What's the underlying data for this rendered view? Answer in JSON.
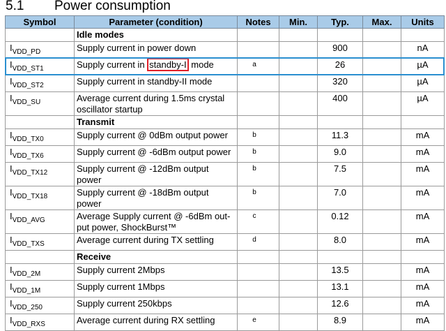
{
  "section": {
    "number": "5.1",
    "title": "Power consumption"
  },
  "table": {
    "headers": [
      "Symbol",
      "Parameter (condition)",
      "Notes",
      "Min.",
      "Typ.",
      "Max.",
      "Units"
    ],
    "rows": [
      {
        "section": "Idle modes"
      },
      {
        "symbol": "I",
        "sub": "VDD_PD",
        "parameter": "Supply current in power down",
        "typ": "900",
        "units": "nA"
      },
      {
        "symbol": "I",
        "sub": "VDD_ST1",
        "parameter": [
          "Supply current in ",
          "standby-I",
          " mode"
        ],
        "notes": "a",
        "typ": "26",
        "units": "µA",
        "selected": true
      },
      {
        "symbol": "I",
        "sub": "VDD_ST2",
        "parameter": "Supply current in standby-II mode",
        "typ": "320",
        "units": "µA"
      },
      {
        "symbol": "I",
        "sub": "VDD_SU",
        "parameter": "Average current during 1.5ms crystal oscillator startup",
        "typ": "400",
        "units": "µA"
      },
      {
        "section": "Transmit"
      },
      {
        "symbol": "I",
        "sub": "VDD_TX0",
        "parameter": "Supply current @ 0dBm output power",
        "notes": "b",
        "typ": "11.3",
        "units": "mA"
      },
      {
        "symbol": "I",
        "sub": "VDD_TX6",
        "parameter": "Supply current @ -6dBm output power",
        "notes": "b",
        "typ": "9.0",
        "units": "mA"
      },
      {
        "symbol": "I",
        "sub": "VDD_TX12",
        "parameter": "Supply current @ -12dBm output power",
        "notes": "b",
        "typ": "7.5",
        "units": "mA"
      },
      {
        "symbol": "I",
        "sub": "VDD_TX18",
        "parameter": "Supply current @ -18dBm output power",
        "notes": "b",
        "typ": "7.0",
        "units": "mA"
      },
      {
        "symbol": "I",
        "sub": "VDD_AVG",
        "parameter": "Average Supply current @ -6dBm out-put power, ShockBurst™",
        "notes": "c",
        "typ": "0.12",
        "units": "mA"
      },
      {
        "symbol": "I",
        "sub": "VDD_TXS",
        "parameter": "Average current during TX settling",
        "notes": "d",
        "typ": "8.0",
        "units": "mA"
      },
      {
        "section": "Receive"
      },
      {
        "symbol": "I",
        "sub": "VDD_2M",
        "parameter": "Supply current 2Mbps",
        "typ": "13.5",
        "units": "mA"
      },
      {
        "symbol": "I",
        "sub": "VDD_1M",
        "parameter": "Supply current 1Mbps",
        "typ": "13.1",
        "units": "mA"
      },
      {
        "symbol": "I",
        "sub": "VDD_250",
        "parameter": "Supply current 250kbps",
        "typ": "12.6",
        "units": "mA"
      },
      {
        "symbol": "I",
        "sub": "VDD_RXS",
        "parameter": "Average current during RX settling",
        "notes": "e",
        "typ": "8.9",
        "units": "mA"
      }
    ]
  }
}
